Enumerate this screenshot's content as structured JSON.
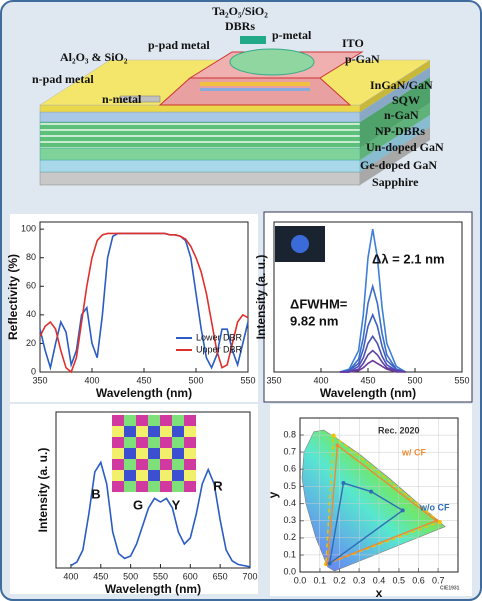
{
  "diagram": {
    "labels": [
      "Ta₂O₅/SiO₂",
      "DBRs",
      "p-metal",
      "ITO",
      "p-GaN",
      "Al₂O₃ & SiO₂",
      "p-pad metal",
      "n-pad metal",
      "n-metal",
      "InGaN/GaN",
      "SQW",
      "n-GaN",
      "NP-DBRs",
      "Un-doped GaN",
      "Ge-doped GaN",
      "Sapphire"
    ]
  },
  "chart_data": [
    {
      "type": "line",
      "xlabel": "Wavelength (nm)",
      "ylabel": "Reflectivity (%)",
      "x": [
        350,
        355,
        360,
        365,
        370,
        375,
        380,
        385,
        390,
        395,
        400,
        405,
        410,
        415,
        420,
        425,
        430,
        435,
        440,
        445,
        450,
        455,
        460,
        465,
        470,
        475,
        480,
        485,
        490,
        495,
        500,
        505,
        510,
        515,
        520,
        525,
        530,
        535,
        540,
        545,
        550
      ],
      "series": [
        {
          "name": "Lower DBR",
          "color": "#2a5cc4",
          "values": [
            30,
            15,
            3,
            20,
            35,
            28,
            5,
            15,
            40,
            45,
            20,
            10,
            40,
            80,
            95,
            97,
            97,
            97,
            97,
            97,
            97,
            97,
            97,
            97,
            97,
            96,
            96,
            95,
            92,
            80,
            55,
            30,
            10,
            3,
            12,
            30,
            30,
            15,
            5,
            20,
            35
          ]
        },
        {
          "name": "Upper DBR",
          "color": "#e0302c",
          "values": [
            25,
            32,
            35,
            30,
            15,
            3,
            0,
            10,
            35,
            60,
            80,
            92,
            96,
            97,
            97,
            97,
            97,
            97,
            97,
            97,
            97,
            97,
            97,
            97,
            97,
            96,
            96,
            95,
            93,
            88,
            80,
            70,
            55,
            35,
            15,
            3,
            5,
            20,
            35,
            40,
            38
          ]
        }
      ],
      "xlim": [
        350,
        550
      ],
      "xticks": [
        350,
        400,
        450,
        500,
        550
      ],
      "ylim": [
        0,
        105
      ],
      "yticks": [
        0,
        20,
        40,
        60,
        80,
        100
      ],
      "legend": "lower right"
    },
    {
      "type": "line",
      "xlabel": "Wavelength (nm)",
      "ylabel": "Intensity (a. u.)",
      "annotations": [
        "Δλ = 2.1 nm",
        "ΔFWHM=",
        "9.82 nm"
      ],
      "x": [
        420,
        430,
        440,
        445,
        450,
        455,
        460,
        465,
        470,
        480,
        490
      ],
      "series": [
        {
          "color": "#3d7fd6",
          "values": [
            0,
            0.02,
            0.15,
            0.4,
            0.8,
            1.0,
            0.8,
            0.45,
            0.2,
            0.04,
            0
          ]
        },
        {
          "color": "#3a6fc8",
          "values": [
            0,
            0.01,
            0.09,
            0.24,
            0.48,
            0.6,
            0.48,
            0.27,
            0.12,
            0.02,
            0
          ]
        },
        {
          "color": "#3f5fc0",
          "values": [
            0,
            0.01,
            0.06,
            0.16,
            0.32,
            0.4,
            0.32,
            0.18,
            0.08,
            0.02,
            0
          ]
        },
        {
          "color": "#4a4fb5",
          "values": [
            0,
            0,
            0.04,
            0.1,
            0.2,
            0.25,
            0.2,
            0.11,
            0.05,
            0.01,
            0
          ]
        },
        {
          "color": "#5a42a8",
          "values": [
            0,
            0,
            0.02,
            0.06,
            0.12,
            0.15,
            0.12,
            0.07,
            0.03,
            0.01,
            0
          ]
        },
        {
          "color": "#6a3a9c",
          "values": [
            0,
            0,
            0.01,
            0.03,
            0.06,
            0.08,
            0.06,
            0.04,
            0.02,
            0,
            0
          ]
        }
      ],
      "xlim": [
        350,
        550
      ],
      "xticks": [
        350,
        400,
        450,
        500,
        550
      ],
      "ylim": [
        0,
        1.05
      ]
    },
    {
      "type": "line",
      "xlabel": "Wavelength (nm)",
      "ylabel": "Intensity (a. u.)",
      "annotations": [
        "B",
        "G",
        "Y",
        "R"
      ],
      "x": [
        400,
        410,
        420,
        430,
        440,
        450,
        460,
        470,
        480,
        490,
        500,
        510,
        520,
        530,
        540,
        550,
        560,
        570,
        580,
        590,
        600,
        610,
        620,
        630,
        640,
        650,
        660,
        670,
        680,
        690,
        700
      ],
      "series": [
        {
          "color": "#2a5cc4",
          "values": [
            0.02,
            0.05,
            0.15,
            0.45,
            0.8,
            0.88,
            0.7,
            0.3,
            0.12,
            0.08,
            0.1,
            0.2,
            0.35,
            0.5,
            0.58,
            0.55,
            0.58,
            0.5,
            0.3,
            0.2,
            0.25,
            0.45,
            0.7,
            0.82,
            0.7,
            0.4,
            0.15,
            0.06,
            0.03,
            0.02,
            0.01
          ]
        }
      ],
      "xlim": [
        375,
        700
      ],
      "xticks": [
        400,
        450,
        500,
        550,
        600,
        650,
        700
      ],
      "ylim": [
        0,
        1.3
      ]
    },
    {
      "type": "scatter",
      "xlabel": "x",
      "ylabel": "y",
      "grid": true,
      "annotations": [
        "Rec. 2020",
        "w/ CF",
        "w/o CF",
        "CIE1931"
      ],
      "series": [
        {
          "color": "#f2c200",
          "dashed": true,
          "x": [
            0.708,
            0.17,
            0.131
          ],
          "values": [
            0.292,
            0.797,
            0.046
          ]
        },
        {
          "color": "#f08a30",
          "x": [
            0.69,
            0.19,
            0.14
          ],
          "values": [
            0.3,
            0.74,
            0.05
          ]
        },
        {
          "color": "#2e6db4",
          "x": [
            0.15,
            0.22,
            0.36,
            0.52
          ],
          "values": [
            0.05,
            0.52,
            0.47,
            0.36
          ]
        }
      ],
      "xlim": [
        0,
        0.8
      ],
      "xticks": [
        {
          "value": 0,
          "label": "0.0"
        },
        0.1,
        0.2,
        0.3,
        0.4,
        0.5,
        0.6,
        0.7
      ],
      "ylim": [
        0,
        0.9
      ],
      "yticks": [
        {
          "value": 0,
          "label": "0.0"
        },
        0.1,
        0.2,
        0.3,
        0.4,
        0.5,
        0.6,
        0.7,
        0.8
      ]
    }
  ]
}
